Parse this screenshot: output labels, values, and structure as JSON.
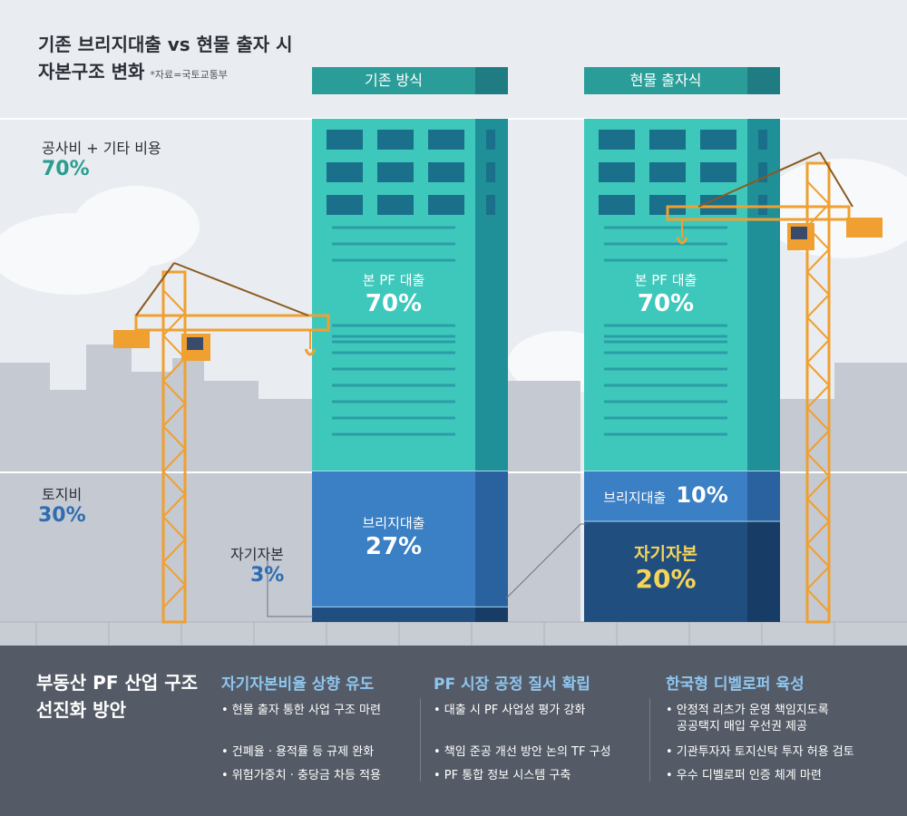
{
  "header": {
    "title_line1": "기존 브리지대출 vs 현물 출자 시",
    "title_line2": "자본구조 변화",
    "source": "*자료=국토교통부"
  },
  "side": {
    "construction_label": "공사비 + 기타 비용",
    "construction_pct": "70%",
    "land_label": "토지비",
    "land_pct": "30%",
    "equity_label": "자기자본",
    "equity_pct": "3%"
  },
  "buildings": {
    "left": {
      "header": "기존 방식",
      "pf_label": "본 PF 대출",
      "pf_pct": "70%",
      "bridge_label": "브리지대출",
      "bridge_pct": "27%"
    },
    "right": {
      "header": "현물 출자식",
      "pf_label": "본 PF 대출",
      "pf_pct": "70%",
      "bridge_label": "브리지대출",
      "bridge_pct": "10%",
      "equity_label": "자기자본",
      "equity_pct": "20%"
    }
  },
  "chart_data": {
    "type": "bar",
    "title": "기존 브리지대출 vs 현물 출자 시 자본구조 변화",
    "categories": [
      "기존 방식",
      "현물 출자식"
    ],
    "series": [
      {
        "name": "본 PF 대출",
        "values": [
          70,
          70
        ]
      },
      {
        "name": "브리지대출",
        "values": [
          27,
          10
        ]
      },
      {
        "name": "자기자본",
        "values": [
          3,
          20
        ]
      }
    ],
    "stacked": true,
    "unit": "%"
  },
  "bottom": {
    "title_line1": "부동산 PF 산업 구조",
    "title_line2": "선진화 방안",
    "columns": [
      {
        "title": "자기자본비율 상향 유도",
        "items": [
          "• 현물 출자 통한 사업 구조 마련",
          "• 건폐율 · 용적률 등 규제 완화",
          "• 위험가중치 · 충당금 차등 적용"
        ]
      },
      {
        "title": "PF 시장 공정 질서 확립",
        "items": [
          "• 대출 시 PF 사업성 평가 강화",
          "• 책임 준공 개선 방안 논의 TF 구성",
          "• PF 통합 정보 시스템 구축"
        ]
      },
      {
        "title": "한국형 디벨로퍼 육성",
        "items": [
          "• 안정적 리츠가 운영 책임지도록",
          "공공택지 매입 우선권 제공",
          "• 기관투자자 토지신탁 투자 허용 검토",
          "• 우수 디벨로퍼 인증 체계 마련"
        ]
      }
    ]
  },
  "colors": {
    "pf_teal": "#3ec8bc",
    "bridge_blue": "#3b7fc4",
    "equity_navy": "#1f4e7f",
    "header_teal": "#2a9d98",
    "crane_orange": "#f0a030",
    "accent_green": "#2a9d8f",
    "accent_blue": "#2f6db0",
    "equity_yellow": "#f5d45a"
  }
}
